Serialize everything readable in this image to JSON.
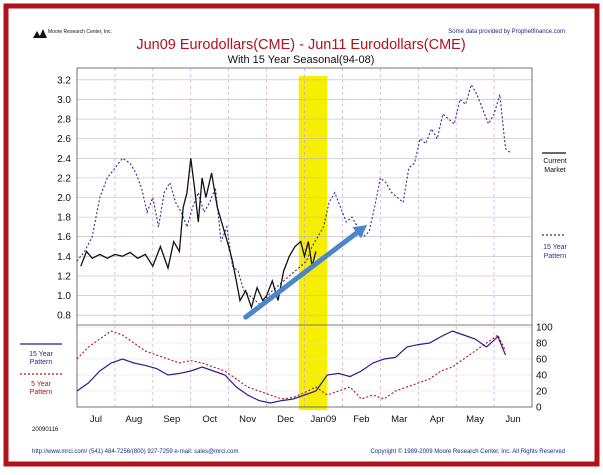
{
  "chart_data": {
    "type": "line",
    "title": "Jun09 Eurodollars(CME) - Jun11 Eurodollars(CME)",
    "subtitle": "With 15 Year Seasonal(94-08)",
    "publisher": "Moore Research Center, Inc.",
    "data_credit": "Some data provided by Prophetfinance.com",
    "date_stamp": "20090116",
    "footer_left": "http://www.mrci.com/   (541) 484-7256/(800) 927-7259   e-mail: sales@mrci.com",
    "footer_right": "Copyright © 1989-2009 Moore Research Center, Inc. All Rights Reserved",
    "x_months": [
      "Jul",
      "Aug",
      "Sep",
      "Oct",
      "Nov",
      "Dec",
      "Jan09",
      "Feb",
      "Mar",
      "Apr",
      "May",
      "Jun"
    ],
    "upper": {
      "yticks": [
        "3.2",
        "3.0",
        "2.8",
        "2.6",
        "2.4",
        "2.2",
        "2.0",
        "1.8",
        "1.6",
        "1.4",
        "1.2",
        "1.0",
        "0.8"
      ],
      "ylim": [
        0.7,
        3.3
      ],
      "legend_current": [
        "Current",
        "Market"
      ],
      "legend_pattern": [
        "15 Year",
        "Pattern"
      ],
      "current_market": {
        "x": [
          0.1,
          0.25,
          0.4,
          0.6,
          0.8,
          1.0,
          1.2,
          1.4,
          1.6,
          1.8,
          2.0,
          2.2,
          2.4,
          2.55,
          2.7,
          2.8,
          2.9,
          3.0,
          3.1,
          3.2,
          3.3,
          3.4,
          3.55,
          3.7,
          3.85,
          4.0,
          4.1,
          4.2,
          4.3,
          4.45,
          4.6,
          4.75,
          4.9,
          5.0,
          5.15,
          5.3,
          5.45,
          5.6,
          5.75,
          5.9,
          6.0,
          6.1,
          6.2,
          6.3
        ],
        "y": [
          1.3,
          1.45,
          1.38,
          1.42,
          1.38,
          1.42,
          1.4,
          1.44,
          1.38,
          1.42,
          1.3,
          1.5,
          1.28,
          1.55,
          1.45,
          1.9,
          2.05,
          2.4,
          2.1,
          1.75,
          2.2,
          2.0,
          2.25,
          1.9,
          1.7,
          1.5,
          1.35,
          1.15,
          0.95,
          1.05,
          0.88,
          1.08,
          0.95,
          1.0,
          1.15,
          0.95,
          1.25,
          1.4,
          1.5,
          1.55,
          1.4,
          1.55,
          1.3,
          1.45
        ]
      },
      "seasonal_15yr": {
        "x": [
          0.0,
          0.2,
          0.4,
          0.6,
          0.8,
          1.0,
          1.2,
          1.4,
          1.55,
          1.7,
          1.85,
          2.0,
          2.15,
          2.3,
          2.45,
          2.6,
          2.75,
          2.9,
          3.05,
          3.2,
          3.35,
          3.5,
          3.65,
          3.8,
          3.95,
          4.1,
          4.25,
          4.4,
          4.55,
          4.7,
          4.85,
          5.0,
          5.15,
          5.3,
          5.45,
          5.6,
          5.75,
          5.9,
          6.05,
          6.2,
          6.35,
          6.5,
          6.65,
          6.8,
          6.95,
          7.1,
          7.25,
          7.4,
          7.55,
          7.7,
          7.85,
          8.0,
          8.15,
          8.3,
          8.45,
          8.6,
          8.75,
          8.9,
          9.05,
          9.2,
          9.35,
          9.5,
          9.65,
          9.8,
          9.95,
          10.1,
          10.25,
          10.4,
          10.55,
          10.7,
          10.85,
          11.0,
          11.15,
          11.3,
          11.45
        ],
        "y": [
          1.35,
          1.45,
          1.6,
          2.0,
          2.2,
          2.3,
          2.4,
          2.35,
          2.25,
          2.1,
          1.85,
          2.0,
          1.7,
          2.05,
          2.15,
          1.95,
          1.85,
          1.7,
          1.9,
          2.05,
          1.85,
          1.95,
          2.1,
          1.55,
          1.7,
          1.3,
          1.25,
          1.05,
          1.0,
          0.95,
          0.9,
          0.98,
          1.05,
          1.1,
          1.15,
          1.2,
          1.25,
          1.3,
          1.35,
          1.5,
          1.6,
          1.7,
          1.95,
          2.05,
          1.9,
          1.75,
          1.8,
          1.7,
          1.6,
          1.65,
          1.9,
          2.2,
          2.15,
          2.05,
          2.0,
          1.95,
          2.3,
          2.35,
          2.6,
          2.55,
          2.7,
          2.6,
          2.85,
          2.8,
          2.75,
          3.0,
          2.95,
          3.15,
          3.05,
          2.9,
          2.75,
          2.85,
          3.05,
          2.5,
          2.45
        ]
      }
    },
    "lower": {
      "yticks": [
        "100",
        "80",
        "60",
        "40",
        "20",
        "0"
      ],
      "ylim": [
        0,
        100
      ],
      "legend_15yr": [
        "15 Year",
        "Pattern"
      ],
      "legend_5yr": [
        "5 Year",
        "Pattern"
      ],
      "pattern_15yr": {
        "x": [
          0.0,
          0.3,
          0.6,
          0.9,
          1.2,
          1.5,
          1.8,
          2.1,
          2.4,
          2.7,
          3.0,
          3.3,
          3.6,
          3.9,
          4.2,
          4.5,
          4.8,
          5.1,
          5.4,
          5.7,
          6.0,
          6.3,
          6.6,
          6.9,
          7.2,
          7.5,
          7.8,
          8.1,
          8.4,
          8.7,
          9.0,
          9.3,
          9.6,
          9.9,
          10.2,
          10.5,
          10.8,
          11.1,
          11.3
        ],
        "y": [
          20,
          30,
          45,
          55,
          60,
          55,
          52,
          48,
          40,
          42,
          45,
          50,
          45,
          40,
          25,
          15,
          8,
          5,
          8,
          10,
          15,
          20,
          40,
          42,
          38,
          45,
          55,
          60,
          62,
          75,
          78,
          80,
          88,
          95,
          90,
          85,
          75,
          88,
          65
        ]
      },
      "pattern_5yr": {
        "x": [
          0.0,
          0.3,
          0.6,
          0.9,
          1.2,
          1.5,
          1.8,
          2.1,
          2.4,
          2.7,
          3.0,
          3.3,
          3.6,
          3.9,
          4.2,
          4.5,
          4.8,
          5.1,
          5.4,
          5.7,
          6.0,
          6.3,
          6.6,
          6.9,
          7.2,
          7.5,
          7.8,
          8.1,
          8.4,
          8.7,
          9.0,
          9.3,
          9.6,
          9.9,
          10.2,
          10.5,
          10.8,
          11.1,
          11.3
        ],
        "y": [
          60,
          75,
          85,
          95,
          90,
          80,
          70,
          65,
          60,
          55,
          58,
          55,
          50,
          45,
          35,
          25,
          20,
          15,
          10,
          12,
          18,
          25,
          15,
          20,
          25,
          10,
          15,
          10,
          20,
          25,
          30,
          35,
          45,
          50,
          60,
          70,
          80,
          90,
          70
        ]
      }
    },
    "highlight_x": [
      5.85,
      6.6
    ],
    "trend_arrow": {
      "x": [
        4.45,
        7.65
      ],
      "y_upper": [
        0.78,
        1.72
      ]
    }
  }
}
